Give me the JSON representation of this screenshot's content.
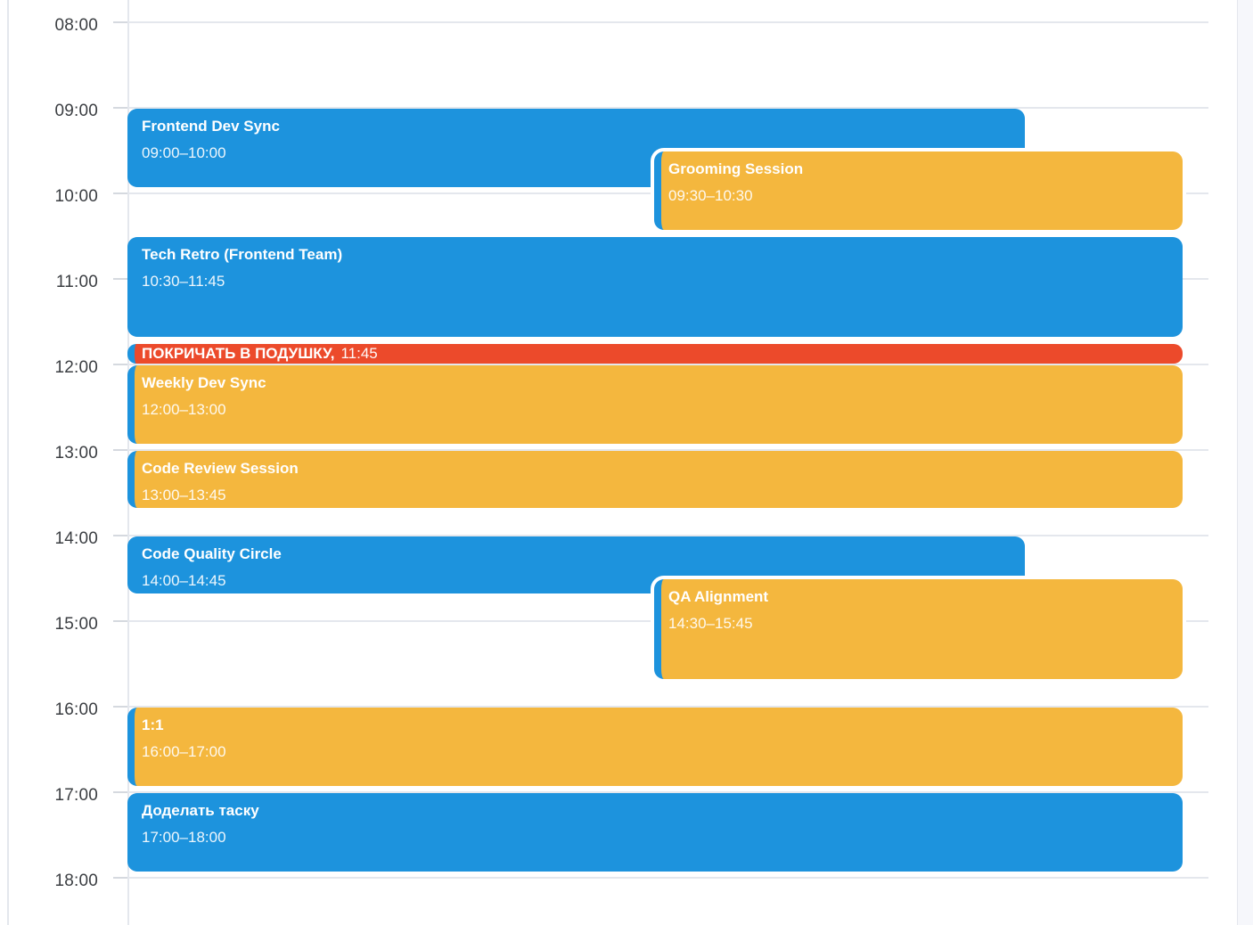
{
  "calendar": {
    "view": "day",
    "hours": [
      "08:00",
      "09:00",
      "10:00",
      "11:00",
      "12:00",
      "13:00",
      "14:00",
      "15:00",
      "16:00",
      "17:00",
      "18:00"
    ],
    "events": [
      {
        "title": "Frontend Dev Sync",
        "time": "09:00–10:00",
        "start": 9,
        "end": 10,
        "color": "blue",
        "width": "narrow",
        "offset": false,
        "type": "event"
      },
      {
        "title": "Grooming Session",
        "time": "09:30–10:30",
        "start": 9.5,
        "end": 10.5,
        "color": "orange",
        "width": "full",
        "offset": true,
        "type": "event"
      },
      {
        "title": "Tech Retro (Frontend Team)",
        "time": "10:30–11:45",
        "start": 10.5,
        "end": 11.75,
        "color": "blue",
        "width": "full",
        "offset": false,
        "type": "event"
      },
      {
        "title": "ПОКРИЧАТЬ В ПОДУШКУ,",
        "time": "11:45",
        "start": 11.75,
        "end": 11.75,
        "color": "red",
        "width": "full",
        "offset": false,
        "type": "reminder"
      },
      {
        "title": "Weekly Dev Sync",
        "time": "12:00–13:00",
        "start": 12,
        "end": 13,
        "color": "orange",
        "width": "full",
        "offset": false,
        "type": "event"
      },
      {
        "title": "Code Review Session",
        "time": "13:00–13:45",
        "start": 13,
        "end": 13.75,
        "color": "orange",
        "width": "full",
        "offset": false,
        "type": "event"
      },
      {
        "title": "Code Quality Circle",
        "time": "14:00–14:45",
        "start": 14,
        "end": 14.75,
        "color": "blue",
        "width": "narrow",
        "offset": false,
        "type": "event"
      },
      {
        "title": "QA Alignment",
        "time": "14:30–15:45",
        "start": 14.5,
        "end": 15.75,
        "color": "orange",
        "width": "full",
        "offset": true,
        "type": "event"
      },
      {
        "title": "1:1",
        "time": "16:00–17:00",
        "start": 16,
        "end": 17,
        "color": "orange",
        "width": "full",
        "offset": false,
        "type": "event"
      },
      {
        "title": "Доделать таску",
        "time": "17:00–18:00",
        "start": 17,
        "end": 18,
        "color": "blue",
        "width": "full",
        "offset": false,
        "type": "event"
      }
    ]
  },
  "colors": {
    "event_blue": "#1d93dd",
    "event_orange": "#f4b73e",
    "event_red": "#ec4a2b",
    "accent_stripe": "#1d93dd",
    "grid_line": "#e4e7ed",
    "grid_tick": "#d5d9df",
    "hour_label_text": "#3b3e42",
    "event_text": "#ffffff",
    "adjacent_column_bg": "#f6f7fb"
  }
}
